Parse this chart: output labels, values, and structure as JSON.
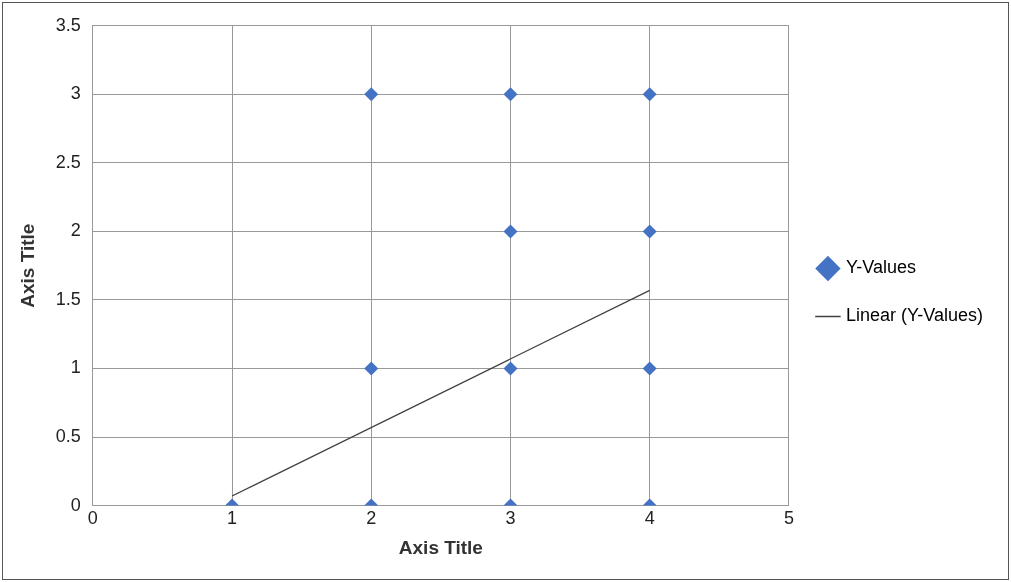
{
  "chart_data": {
    "type": "scatter",
    "xlabel": "Axis Title",
    "ylabel": "Axis Title",
    "xlim": [
      0,
      5
    ],
    "xticks": [
      0,
      1,
      2,
      3,
      4,
      5
    ],
    "ylim": [
      0,
      3.5
    ],
    "yticks": [
      0,
      0.5,
      1,
      1.5,
      2,
      2.5,
      3,
      3.5
    ],
    "grid": true,
    "legend": "right",
    "marker": "diamond",
    "series": [
      {
        "name": "Y-Values",
        "color": "#4472c4",
        "x": [
          1,
          2,
          2,
          2,
          3,
          3,
          3,
          3,
          4,
          4,
          4,
          4
        ],
        "values": [
          0,
          0,
          1,
          3,
          0,
          1,
          2,
          3,
          0,
          1,
          2,
          3
        ]
      },
      {
        "name": "Linear (Y-Values)",
        "type": "line",
        "color": "#404040",
        "x": [
          1,
          4
        ],
        "values": [
          0.07,
          1.57
        ],
        "marker": "none",
        "line_style": "solid"
      }
    ]
  }
}
